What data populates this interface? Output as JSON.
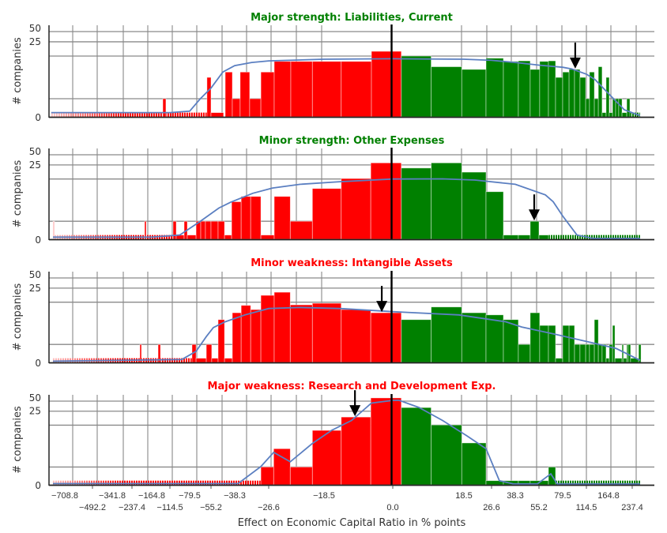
{
  "axes": {
    "xlabel": "Effect on Economic Capital Ratio in % points",
    "ylabel": "# companies",
    "x_units": "tick index (bin position along the non-linear axis; tick i carries label xtick_labels[i])",
    "xtick_labels": [
      "−708.8",
      "−492.2",
      "−341.8",
      "−237.4",
      "−164.8",
      "−114.5",
      "−79.5",
      "−55.2",
      "−38.3",
      "−26.6",
      "−18.5",
      "0.0",
      "18.5",
      "26.6",
      "38.3",
      "55.2",
      "79.5",
      "114.5",
      "164.8",
      "237.4"
    ],
    "zero_index": 11,
    "ytick_labels": [
      {
        "value": 0,
        "label": "0"
      },
      {
        "value": 25,
        "label": "25"
      },
      {
        "value": 50,
        "label": "50"
      }
    ],
    "y_gridlines": [
      2,
      10,
      25,
      50
    ],
    "y_scale_anchors": [
      [
        0,
        0
      ],
      [
        1,
        0.05
      ],
      [
        2,
        0.213
      ],
      [
        10,
        0.713
      ],
      [
        25,
        0.88
      ],
      [
        50,
        1
      ]
    ]
  },
  "colors": {
    "negative": "#ff0000",
    "negative_faded": "#ffc4c4",
    "positive": "#008000",
    "kde": "#5b7fc1",
    "strength_title": "#008000",
    "weakness_title": "#ff0000"
  },
  "chart_data": [
    {
      "type": "bar",
      "title": "Major strength: Liabilities, Current",
      "title_kind": "strength",
      "bars": [
        [
          4.61,
          4.78,
          2
        ],
        [
          6.81,
          7.0,
          6
        ],
        [
          7.0,
          7.53,
          1
        ],
        [
          7.6,
          7.9,
          7
        ],
        [
          7.9,
          8.16,
          2
        ],
        [
          8.16,
          8.44,
          7
        ],
        [
          8.44,
          8.77,
          2
        ],
        [
          8.77,
          9.1,
          7
        ],
        [
          9.1,
          9.4,
          9
        ],
        [
          9.4,
          9.79,
          9
        ],
        [
          9.79,
          10.25,
          9
        ],
        [
          10.25,
          10.69,
          9
        ],
        [
          10.69,
          11.12,
          15
        ],
        [
          11.12,
          11.54,
          10
        ],
        [
          11.54,
          11.97,
          8
        ],
        [
          11.97,
          12.8,
          7.5
        ],
        [
          12.8,
          13.5,
          9.6
        ],
        [
          13.5,
          14.13,
          9
        ],
        [
          14.13,
          14.63,
          9.1
        ],
        [
          14.63,
          15.03,
          7.5
        ],
        [
          15.03,
          15.4,
          9
        ],
        [
          15.4,
          15.7,
          9.1
        ],
        [
          15.7,
          16.0,
          6
        ],
        [
          16.0,
          16.27,
          7
        ],
        [
          16.27,
          16.5,
          7.5
        ],
        [
          16.5,
          16.73,
          7.5
        ],
        [
          16.73,
          16.97,
          6
        ],
        [
          16.97,
          17.14,
          2
        ],
        [
          17.14,
          17.36,
          7
        ],
        [
          17.36,
          17.54,
          2
        ],
        [
          17.54,
          17.71,
          8
        ],
        [
          17.71,
          17.89,
          1
        ],
        [
          17.89,
          18.03,
          6
        ],
        [
          18.03,
          18.17,
          1
        ],
        [
          18.17,
          18.3,
          2
        ],
        [
          18.3,
          18.43,
          2
        ],
        [
          18.43,
          18.57,
          2
        ],
        [
          18.57,
          18.77,
          1
        ],
        [
          18.77,
          18.9,
          2
        ]
      ],
      "tails": [
        [
          -0.49,
          6.81,
          1
        ],
        [
          18.9,
          19.33,
          1
        ]
      ],
      "kde": [
        [
          -0.49,
          1
        ],
        [
          5,
          1
        ],
        [
          6,
          1.1
        ],
        [
          6.5,
          2
        ],
        [
          7,
          4
        ],
        [
          7.5,
          7
        ],
        [
          8,
          8.2
        ],
        [
          8.5,
          8.8
        ],
        [
          9,
          9.1
        ],
        [
          10,
          9.4
        ],
        [
          11,
          9.5
        ],
        [
          12,
          9.4
        ],
        [
          13,
          9.2
        ],
        [
          14,
          8.8
        ],
        [
          15,
          8.3
        ],
        [
          16,
          7.9
        ],
        [
          16.37,
          7.6
        ],
        [
          17,
          6.6
        ],
        [
          17.39,
          5.6
        ],
        [
          18.1,
          2.5
        ],
        [
          18.67,
          1.2
        ],
        [
          19.33,
          0.3
        ]
      ],
      "arrow": {
        "x": 16.53,
        "value": 7.5
      }
    },
    {
      "type": "bar",
      "title": "Minor strength: Other Expenses",
      "title_kind": "strength",
      "bars": [
        [
          -0.43,
          -0.37,
          2
        ],
        [
          3.64,
          3.72,
          2
        ],
        [
          5.16,
          5.32,
          2
        ],
        [
          5.32,
          5.72,
          1
        ],
        [
          5.72,
          5.88,
          2
        ],
        [
          5.88,
          6.3,
          1
        ],
        [
          6.3,
          6.52,
          2
        ],
        [
          6.52,
          6.74,
          2
        ],
        [
          6.74,
          7.0,
          2
        ],
        [
          7.0,
          7.3,
          2
        ],
        [
          7.3,
          7.57,
          2
        ],
        [
          7.57,
          7.87,
          1
        ],
        [
          7.87,
          8.19,
          5.7
        ],
        [
          8.19,
          8.47,
          6.7
        ],
        [
          8.47,
          8.77,
          6.7
        ],
        [
          8.77,
          9.1,
          1
        ],
        [
          9.1,
          9.39,
          6.7
        ],
        [
          9.39,
          9.79,
          2
        ],
        [
          9.79,
          10.25,
          8.2
        ],
        [
          10.25,
          10.68,
          10.5
        ],
        [
          10.68,
          11.12,
          30
        ],
        [
          11.12,
          11.54,
          21.7
        ],
        [
          11.54,
          11.97,
          30
        ],
        [
          11.97,
          12.8,
          17.3
        ],
        [
          12.8,
          13.5,
          7.6
        ],
        [
          13.5,
          14.13,
          1
        ],
        [
          14.13,
          14.63,
          1
        ],
        [
          14.63,
          15.0,
          2
        ],
        [
          15.0,
          15.4,
          1
        ]
      ],
      "tails": [
        [
          -0.37,
          5.16,
          1
        ],
        [
          15.4,
          19.33,
          1
        ]
      ],
      "kde": [
        [
          -0.43,
          0.5
        ],
        [
          4,
          0.5
        ],
        [
          5.5,
          1
        ],
        [
          6.5,
          2
        ],
        [
          7.33,
          4.5
        ],
        [
          7.83,
          5.6
        ],
        [
          8.53,
          7.3
        ],
        [
          9.07,
          8.3
        ],
        [
          9.57,
          9
        ],
        [
          10.23,
          9.5
        ],
        [
          11,
          10
        ],
        [
          11.7,
          10.2
        ],
        [
          12.4,
          9.8
        ],
        [
          14,
          9
        ],
        [
          15.27,
          7
        ],
        [
          15.6,
          5.7
        ],
        [
          16,
          3
        ],
        [
          16.6,
          1
        ],
        [
          17.29,
          0.2
        ],
        [
          19.33,
          0.2
        ]
      ],
      "arrow": {
        "x": 14.8,
        "value": 2
      }
    },
    {
      "type": "bar",
      "title": "Minor weakness: Intangible Assets",
      "title_kind": "weakness",
      "bars": [
        [
          3.4,
          3.48,
          2
        ],
        [
          4.35,
          4.48,
          2
        ],
        [
          6.11,
          6.3,
          2
        ],
        [
          6.3,
          6.78,
          1
        ],
        [
          6.78,
          7.03,
          2
        ],
        [
          7.03,
          7.3,
          1
        ],
        [
          7.3,
          7.57,
          6.7
        ],
        [
          7.57,
          7.9,
          1
        ],
        [
          7.9,
          8.19,
          8
        ],
        [
          8.19,
          8.47,
          9.4
        ],
        [
          8.47,
          8.77,
          8.6
        ],
        [
          8.77,
          9.1,
          17.3
        ],
        [
          9.1,
          9.39,
          20.6
        ],
        [
          9.39,
          9.79,
          9.5
        ],
        [
          9.79,
          10.25,
          9.8
        ],
        [
          10.25,
          10.68,
          8.6
        ],
        [
          10.68,
          11.12,
          8
        ],
        [
          11.12,
          11.54,
          6.7
        ],
        [
          11.54,
          11.97,
          9.1
        ],
        [
          11.97,
          12.8,
          8
        ],
        [
          12.8,
          13.5,
          7.6
        ],
        [
          13.5,
          14.13,
          6.7
        ],
        [
          14.13,
          14.63,
          2
        ],
        [
          14.63,
          15.03,
          8
        ],
        [
          15.03,
          15.4,
          5.6
        ],
        [
          15.4,
          15.7,
          5.6
        ],
        [
          15.7,
          16.0,
          1
        ],
        [
          16.0,
          16.27,
          5.6
        ],
        [
          16.27,
          16.5,
          5.6
        ],
        [
          16.5,
          16.73,
          2
        ],
        [
          16.73,
          16.97,
          2
        ],
        [
          16.97,
          17.14,
          2
        ],
        [
          17.14,
          17.36,
          2
        ],
        [
          17.36,
          17.54,
          6.7
        ],
        [
          17.54,
          17.71,
          2
        ],
        [
          17.71,
          17.89,
          2
        ],
        [
          17.89,
          18.03,
          1
        ],
        [
          18.03,
          18.17,
          2
        ],
        [
          18.17,
          18.27,
          5.6
        ],
        [
          18.27,
          18.57,
          1
        ],
        [
          18.57,
          18.63,
          2
        ],
        [
          18.63,
          18.77,
          1
        ],
        [
          18.77,
          18.83,
          2
        ],
        [
          18.83,
          18.93,
          2
        ],
        [
          18.93,
          19.27,
          1
        ],
        [
          19.27,
          19.37,
          2
        ]
      ],
      "tails": [
        [
          -0.43,
          6.11,
          1
        ]
      ],
      "kde": [
        [
          -0.43,
          0.3
        ],
        [
          5.6,
          0.7
        ],
        [
          6.3,
          1.5
        ],
        [
          6.78,
          3.5
        ],
        [
          7.1,
          5.2
        ],
        [
          7.6,
          6.3
        ],
        [
          8.3,
          7.6
        ],
        [
          9,
          8.8
        ],
        [
          9.57,
          9
        ],
        [
          10.23,
          8.8
        ],
        [
          11,
          8.2
        ],
        [
          11.93,
          7.6
        ],
        [
          13.6,
          6.3
        ],
        [
          14.27,
          5.3
        ],
        [
          15.6,
          4
        ],
        [
          17.29,
          2.3
        ],
        [
          18.33,
          1.7
        ],
        [
          19.33,
          0.5
        ]
      ],
      "arrow": {
        "x": 10.84,
        "value": 8
      }
    },
    {
      "type": "bar",
      "title": "Major weakness: Research and Development Exp.",
      "title_kind": "weakness",
      "bars": [
        [
          8.77,
          9.09,
          2
        ],
        [
          9.09,
          9.39,
          5.5
        ],
        [
          9.39,
          9.79,
          2
        ],
        [
          9.79,
          10.25,
          9
        ],
        [
          10.25,
          10.68,
          18.7
        ],
        [
          10.68,
          11.12,
          58
        ],
        [
          11.12,
          11.54,
          34
        ],
        [
          11.54,
          11.97,
          10.2
        ],
        [
          11.97,
          12.8,
          6.6
        ],
        [
          12.8,
          13.5,
          1
        ],
        [
          13.5,
          14.13,
          1
        ],
        [
          14.13,
          14.63,
          1
        ],
        [
          14.63,
          15.4,
          1
        ],
        [
          15.4,
          15.7,
          2
        ]
      ],
      "tails": [
        [
          -0.43,
          8.77,
          1
        ],
        [
          15.7,
          19.37,
          1
        ]
      ],
      "kde": [
        [
          -0.43,
          0.3
        ],
        [
          8.1,
          0.3
        ],
        [
          8.77,
          2.1
        ],
        [
          9.09,
          4.8
        ],
        [
          9.39,
          3
        ],
        [
          9.79,
          6.5
        ],
        [
          10.11,
          9
        ],
        [
          10.4,
          15
        ],
        [
          10.69,
          45
        ],
        [
          11,
          52
        ],
        [
          11.09,
          52
        ],
        [
          11.37,
          34
        ],
        [
          11.7,
          15
        ],
        [
          12.1,
          8
        ],
        [
          12.8,
          5.5
        ],
        [
          13.33,
          1
        ],
        [
          13.93,
          0.2
        ],
        [
          14.93,
          0.2
        ],
        [
          15.27,
          1.2
        ],
        [
          15.5,
          1.5
        ],
        [
          15.77,
          0.2
        ],
        [
          19.33,
          0.2
        ]
      ],
      "arrow": {
        "x": 10.45,
        "value": 18.7
      }
    }
  ]
}
